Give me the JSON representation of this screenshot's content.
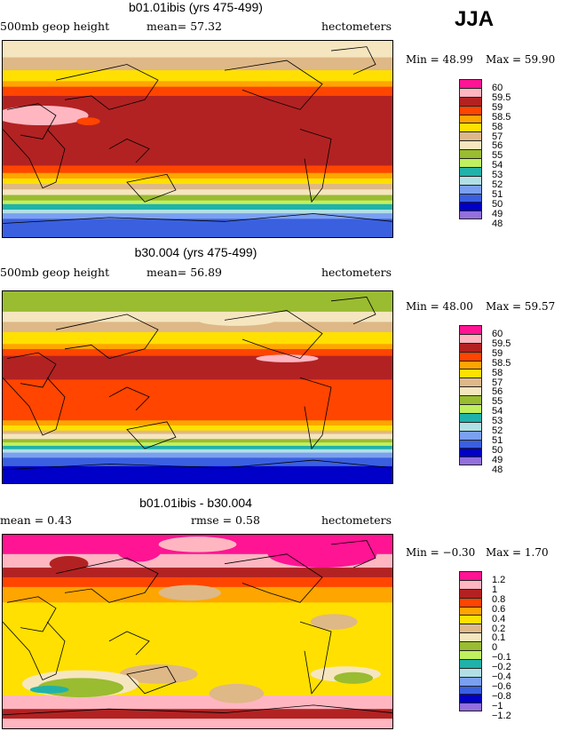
{
  "season": "JJA",
  "palette": [
    "#ff1493",
    "#ffb6c1",
    "#b22222",
    "#ff4500",
    "#ffa500",
    "#ffe000",
    "#deb887",
    "#f5e6c0",
    "#9abc30",
    "#c0f060",
    "#20b2aa",
    "#b0e0e6",
    "#7ba0f0",
    "#3a60e0",
    "#0000c8",
    "#9370db"
  ],
  "panels": [
    {
      "title": "b01.01ibis (yrs 475-499)",
      "left": "500mb geop height",
      "center": "mean=  57.32",
      "right": "hectometers",
      "min": "Min =  48.99",
      "max": "Max =  59.90",
      "levels": [
        "60",
        "59.5",
        "59",
        "58.5",
        "58",
        "57",
        "56",
        "55",
        "54",
        "53",
        "52",
        "51",
        "50",
        "49",
        "48"
      ]
    },
    {
      "title": "b30.004 (yrs 475-499)",
      "left": "500mb geop height",
      "center": "mean=  56.89",
      "right": "hectometers",
      "min": "Min =  48.00",
      "max": "Max =  59.57",
      "levels": [
        "60",
        "59.5",
        "59",
        "58.5",
        "58",
        "57",
        "56",
        "55",
        "54",
        "53",
        "52",
        "51",
        "50",
        "49",
        "48"
      ]
    },
    {
      "title": "b01.01ibis - b30.004",
      "left": "mean =   0.43",
      "center": "rmse =   0.58",
      "right": "hectometers",
      "min": "Min =  −0.30",
      "max": "Max =   1.70",
      "levels": [
        "1.2",
        "1",
        "0.8",
        "0.6",
        "0.4",
        "0.2",
        "0.1",
        "0",
        "−0.1",
        "−0.2",
        "−0.4",
        "−0.6",
        "−0.8",
        "−1",
        "−1.2"
      ]
    }
  ]
}
